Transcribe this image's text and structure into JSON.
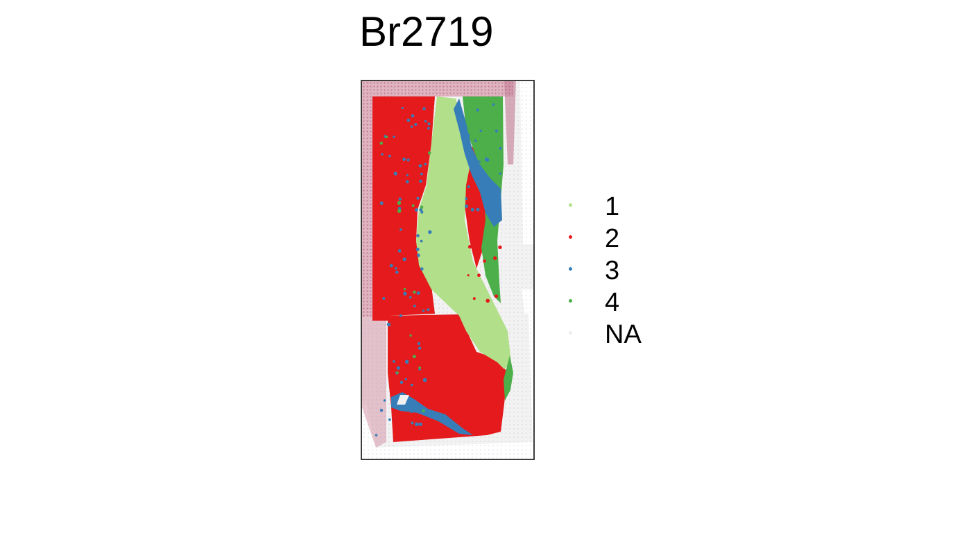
{
  "chart_data": {
    "type": "spatial-scatter",
    "title": "Br2719",
    "legend": {
      "placement": "right",
      "entries": [
        {
          "label": "1",
          "color": "#b2df8a"
        },
        {
          "label": "2",
          "color": "#e41a1c"
        },
        {
          "label": "3",
          "color": "#377eb8"
        },
        {
          "label": "4",
          "color": "#4daf4a"
        },
        {
          "label": "NA",
          "color": "#eeeeee"
        }
      ]
    },
    "background": "tissue histology image",
    "grid": false
  }
}
